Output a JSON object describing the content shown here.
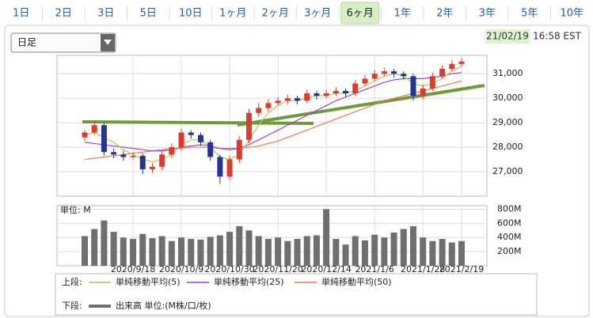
{
  "tabs": [
    "1日",
    "2日",
    "3日",
    "5日",
    "10日",
    "1ヶ月",
    "2ヶ月",
    "3ヶ月",
    "6ヶ月",
    "1年",
    "2年",
    "3年",
    "5年",
    "10年"
  ],
  "selected_tab_index": 8,
  "dropdown": "日足",
  "date": "21/02/19",
  "time": "16:58 EST",
  "legend": {
    "upper_label": "上段:",
    "lower_label": "下段:"
  },
  "chart_data": [
    {
      "type": "candlestick",
      "categories": [
        null,
        null,
        null,
        null,
        null,
        "2020/9/18",
        null,
        null,
        null,
        null,
        "2020/10/9",
        null,
        null,
        null,
        null,
        "2020/10/30",
        null,
        null,
        null,
        null,
        "2020/11/20",
        null,
        null,
        null,
        null,
        "2020/12/14",
        null,
        null,
        null,
        null,
        "2021/1/6",
        null,
        null,
        null,
        null,
        "2021/1/28",
        null,
        null,
        null,
        "2021/2/19"
      ],
      "open": [
        28400,
        28600,
        28900,
        27800,
        27700,
        27600,
        27650,
        27100,
        27200,
        27700,
        28000,
        28600,
        28500,
        28200,
        27600,
        26800,
        27500,
        28300,
        29400,
        29600,
        29800,
        29900,
        30000,
        29900,
        30200,
        30100,
        30200,
        30300,
        30200,
        30600,
        30800,
        31000,
        31100,
        31000,
        30900,
        30100,
        30400,
        30900,
        31200,
        31400
      ],
      "high": [
        28700,
        29100,
        29000,
        27950,
        27850,
        27800,
        27750,
        27350,
        27850,
        28150,
        28750,
        28700,
        28600,
        28300,
        27700,
        27650,
        28450,
        29550,
        29800,
        29950,
        30050,
        30150,
        30100,
        30350,
        30300,
        30350,
        30450,
        30400,
        30750,
        30950,
        31150,
        31250,
        31200,
        31100,
        31000,
        30550,
        31050,
        31350,
        31550,
        31650
      ],
      "low": [
        28250,
        28500,
        27650,
        27550,
        27450,
        27500,
        26900,
        26950,
        27050,
        27550,
        27850,
        28350,
        28050,
        27450,
        26500,
        26650,
        27350,
        28150,
        29250,
        29450,
        29700,
        29750,
        29750,
        29800,
        29950,
        30000,
        30100,
        30050,
        30100,
        30500,
        30700,
        30900,
        30850,
        30750,
        29900,
        29950,
        30300,
        30800,
        31100,
        31300
      ],
      "close": [
        28600,
        28900,
        27800,
        27700,
        27600,
        27650,
        27100,
        27200,
        27700,
        28000,
        28600,
        28500,
        28200,
        27600,
        26800,
        27500,
        28300,
        29400,
        29600,
        29800,
        29900,
        30000,
        29900,
        30200,
        30100,
        30200,
        30300,
        30200,
        30600,
        30800,
        31000,
        31100,
        31000,
        30900,
        30100,
        30400,
        30900,
        31200,
        31400,
        31500
      ],
      "up_color": "#e03a2e",
      "down_color": "#26348f",
      "series": [
        {
          "name": "単純移動平均(5)",
          "color": "#a8cc5a",
          "values": [
            28500,
            28600,
            28400,
            28200,
            27900,
            27700,
            27500,
            27400,
            27500,
            27700,
            28100,
            28300,
            28300,
            28000,
            27600,
            27500,
            27700,
            28300,
            28900,
            29400,
            29700,
            29900,
            29900,
            30000,
            30100,
            30100,
            30200,
            30200,
            30300,
            30500,
            30700,
            30900,
            31000,
            30900,
            30600,
            30500,
            30600,
            30800,
            31100,
            31300
          ]
        },
        {
          "name": "単純移動平均(25)",
          "color": "#a53fd6",
          "values": [
            28200,
            28150,
            28100,
            28050,
            28000,
            27950,
            27900,
            27850,
            27850,
            27900,
            28000,
            28050,
            28100,
            28050,
            27950,
            27900,
            27950,
            28100,
            28300,
            28500,
            28700,
            28900,
            29100,
            29300,
            29500,
            29700,
            29900,
            30050,
            30200,
            30350,
            30500,
            30650,
            30750,
            30800,
            30800,
            30800,
            30850,
            30900,
            31000,
            31050
          ]
        },
        {
          "name": "単純移動平均(50)",
          "color": "#ec7a4e",
          "values": [
            27500,
            27550,
            27600,
            27650,
            27700,
            27750,
            27800,
            27850,
            27900,
            27950,
            27950,
            28000,
            28000,
            28000,
            27950,
            27950,
            27950,
            28000,
            28050,
            28150,
            28250,
            28400,
            28550,
            28700,
            28850,
            29000,
            29150,
            29300,
            29450,
            29600,
            29750,
            29900,
            30000,
            30100,
            30200,
            30300,
            30400,
            30500,
            30600,
            30700
          ]
        }
      ],
      "ylim": [
        26000,
        31750
      ],
      "yticks": [
        {
          "value": 27000,
          "label": "27,000"
        },
        {
          "value": 28000,
          "label": "28,000"
        },
        {
          "value": 29000,
          "label": "29,000"
        },
        {
          "value": 30000,
          "label": "30,000"
        },
        {
          "value": 31000,
          "label": "31,000"
        }
      ],
      "grid": true
    },
    {
      "type": "bar",
      "title": "単位: M",
      "series": [
        {
          "name": "出来高 単位:(M株/口/枚)",
          "color": "#6f6f6f",
          "values": [
            420,
            520,
            640,
            480,
            400,
            380,
            450,
            390,
            420,
            350,
            400,
            380,
            370,
            410,
            430,
            480,
            560,
            500,
            420,
            380,
            400,
            350,
            380,
            420,
            430,
            800,
            380,
            300,
            420,
            360,
            440,
            400,
            470,
            520,
            560,
            400,
            350,
            380,
            330,
            350
          ]
        }
      ],
      "ylim": [
        0,
        850
      ],
      "yticks": [
        {
          "value": 200,
          "label": "200M"
        },
        {
          "value": 400,
          "label": "400M"
        },
        {
          "value": 600,
          "label": "600M"
        },
        {
          "value": 800,
          "label": "800M"
        }
      ],
      "grid": true
    }
  ]
}
